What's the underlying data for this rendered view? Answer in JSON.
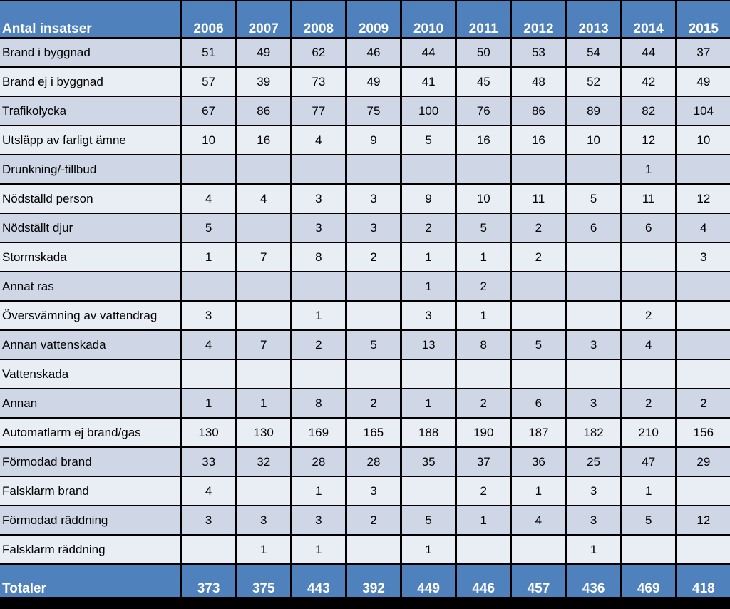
{
  "header": {
    "label": "Antal insatser",
    "years": [
      "2006",
      "2007",
      "2008",
      "2009",
      "2010",
      "2011",
      "2012",
      "2013",
      "2014",
      "2015"
    ]
  },
  "rows": [
    {
      "label": "Brand i byggnad",
      "values": [
        "51",
        "49",
        "62",
        "46",
        "44",
        "50",
        "53",
        "54",
        "44",
        "37"
      ]
    },
    {
      "label": "Brand ej i byggnad",
      "values": [
        "57",
        "39",
        "73",
        "49",
        "41",
        "45",
        "48",
        "52",
        "42",
        "49"
      ]
    },
    {
      "label": "Trafikolycka",
      "values": [
        "67",
        "86",
        "77",
        "75",
        "100",
        "76",
        "86",
        "89",
        "82",
        "104"
      ]
    },
    {
      "label": "Utsläpp av farligt ämne",
      "values": [
        "10",
        "16",
        "4",
        "9",
        "5",
        "16",
        "16",
        "10",
        "12",
        "10"
      ]
    },
    {
      "label": "Drunkning/-tillbud",
      "values": [
        "",
        "",
        "",
        "",
        "",
        "",
        "",
        "",
        "1",
        ""
      ]
    },
    {
      "label": "Nödställd person",
      "values": [
        "4",
        "4",
        "3",
        "3",
        "9",
        "10",
        "11",
        "5",
        "11",
        "12"
      ]
    },
    {
      "label": "Nödställt djur",
      "values": [
        "5",
        "",
        "3",
        "3",
        "2",
        "5",
        "2",
        "6",
        "6",
        "4"
      ]
    },
    {
      "label": "Stormskada",
      "values": [
        "1",
        "7",
        "8",
        "2",
        "1",
        "1",
        "2",
        "",
        "",
        "3"
      ]
    },
    {
      "label": "Annat ras",
      "values": [
        "",
        "",
        "",
        "",
        "1",
        "2",
        "",
        "",
        "",
        ""
      ]
    },
    {
      "label": "Översvämning av vattendrag",
      "values": [
        "3",
        "",
        "1",
        "",
        "3",
        "1",
        "",
        "",
        "2",
        ""
      ]
    },
    {
      "label": "Annan vattenskada",
      "values": [
        "4",
        "7",
        "2",
        "5",
        "13",
        "8",
        "5",
        "3",
        "4",
        ""
      ]
    },
    {
      "label": "Vattenskada",
      "values": [
        "",
        "",
        "",
        "",
        "",
        "",
        "",
        "",
        "",
        ""
      ]
    },
    {
      "label": "Annan",
      "values": [
        "1",
        "1",
        "8",
        "2",
        "1",
        "2",
        "6",
        "3",
        "2",
        "2"
      ]
    },
    {
      "label": "Automatlarm ej brand/gas",
      "values": [
        "130",
        "130",
        "169",
        "165",
        "188",
        "190",
        "187",
        "182",
        "210",
        "156"
      ]
    },
    {
      "label": "Förmodad brand",
      "values": [
        "33",
        "32",
        "28",
        "28",
        "35",
        "37",
        "36",
        "25",
        "47",
        "29"
      ]
    },
    {
      "label": "Falsklarm brand",
      "values": [
        "4",
        "",
        "1",
        "3",
        "",
        "2",
        "1",
        "3",
        "1",
        ""
      ]
    },
    {
      "label": "Förmodad räddning",
      "values": [
        "3",
        "3",
        "3",
        "2",
        "5",
        "1",
        "4",
        "3",
        "5",
        "12"
      ]
    },
    {
      "label": "Falsklarm räddning",
      "values": [
        "",
        "1",
        "1",
        "",
        "1",
        "",
        "",
        "1",
        "",
        ""
      ]
    }
  ],
  "totals": {
    "label": "Totaler",
    "values": [
      "373",
      "375",
      "443",
      "392",
      "449",
      "446",
      "457",
      "436",
      "469",
      "418"
    ]
  },
  "colors": {
    "header_bg": "#4f81bd",
    "row_dark": "#cfd7e7",
    "row_light": "#e9edf4",
    "background": "#000000"
  }
}
